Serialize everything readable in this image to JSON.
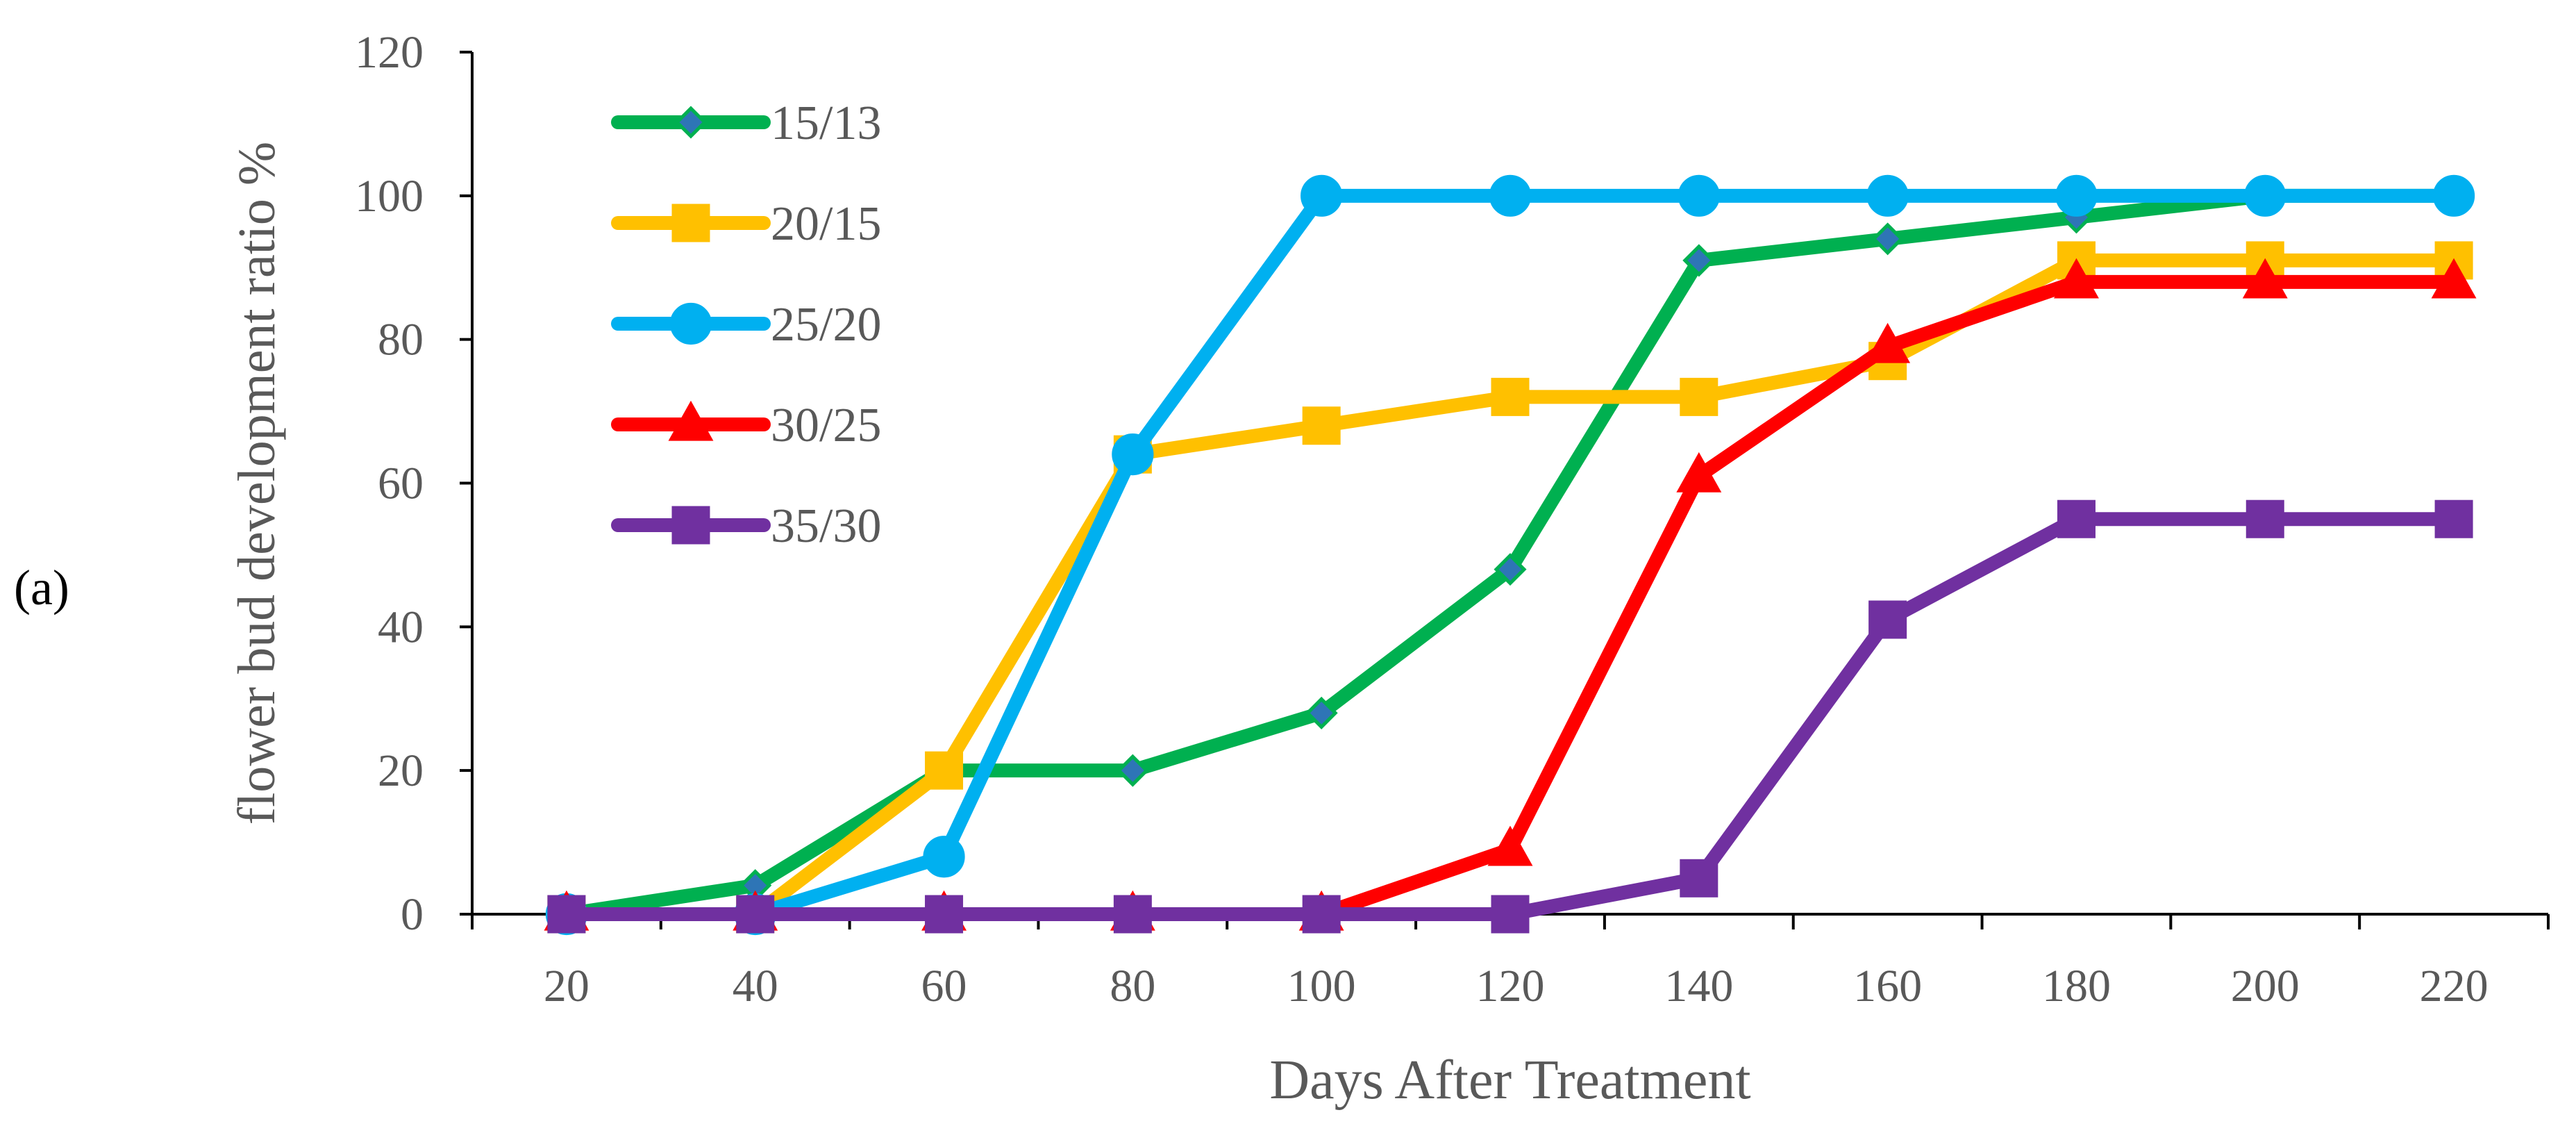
{
  "panel_label": "(a)",
  "chart_data": {
    "type": "line",
    "title": "",
    "xlabel": "Days After Treatment",
    "ylabel": "flower bud development ratio %",
    "x": [
      20,
      40,
      60,
      80,
      100,
      120,
      140,
      160,
      180,
      200,
      220
    ],
    "xlim": [
      10,
      230
    ],
    "ylim": [
      0,
      120
    ],
    "yticks": [
      0,
      20,
      40,
      60,
      80,
      100,
      120
    ],
    "grid": false,
    "legend_position": "top-left",
    "series": [
      {
        "name": "15/13",
        "color": "#00B050",
        "marker": "diamond",
        "marker_fill": "#2E75B6",
        "values": [
          0,
          4,
          20,
          20,
          28,
          48,
          91,
          94,
          97,
          100,
          100
        ]
      },
      {
        "name": "20/15",
        "color": "#FFC000",
        "marker": "square",
        "marker_fill": "#FFC000",
        "values": [
          0,
          0,
          20,
          64,
          68,
          72,
          72,
          77,
          91,
          91,
          91
        ]
      },
      {
        "name": "25/20",
        "color": "#00B0F0",
        "marker": "circle",
        "marker_fill": "#00B0F0",
        "values": [
          0,
          0,
          8,
          64,
          100,
          100,
          100,
          100,
          100,
          100,
          100
        ]
      },
      {
        "name": "30/25",
        "color": "#FF0000",
        "marker": "triangle",
        "marker_fill": "#FF0000",
        "values": [
          0,
          0,
          0,
          0,
          0,
          9,
          61,
          79,
          88,
          88,
          88
        ]
      },
      {
        "name": "35/30",
        "color": "#7030A0",
        "marker": "square",
        "marker_fill": "#7030A0",
        "values": [
          0,
          0,
          0,
          0,
          0,
          0,
          5,
          41,
          55,
          55,
          55
        ]
      }
    ]
  }
}
